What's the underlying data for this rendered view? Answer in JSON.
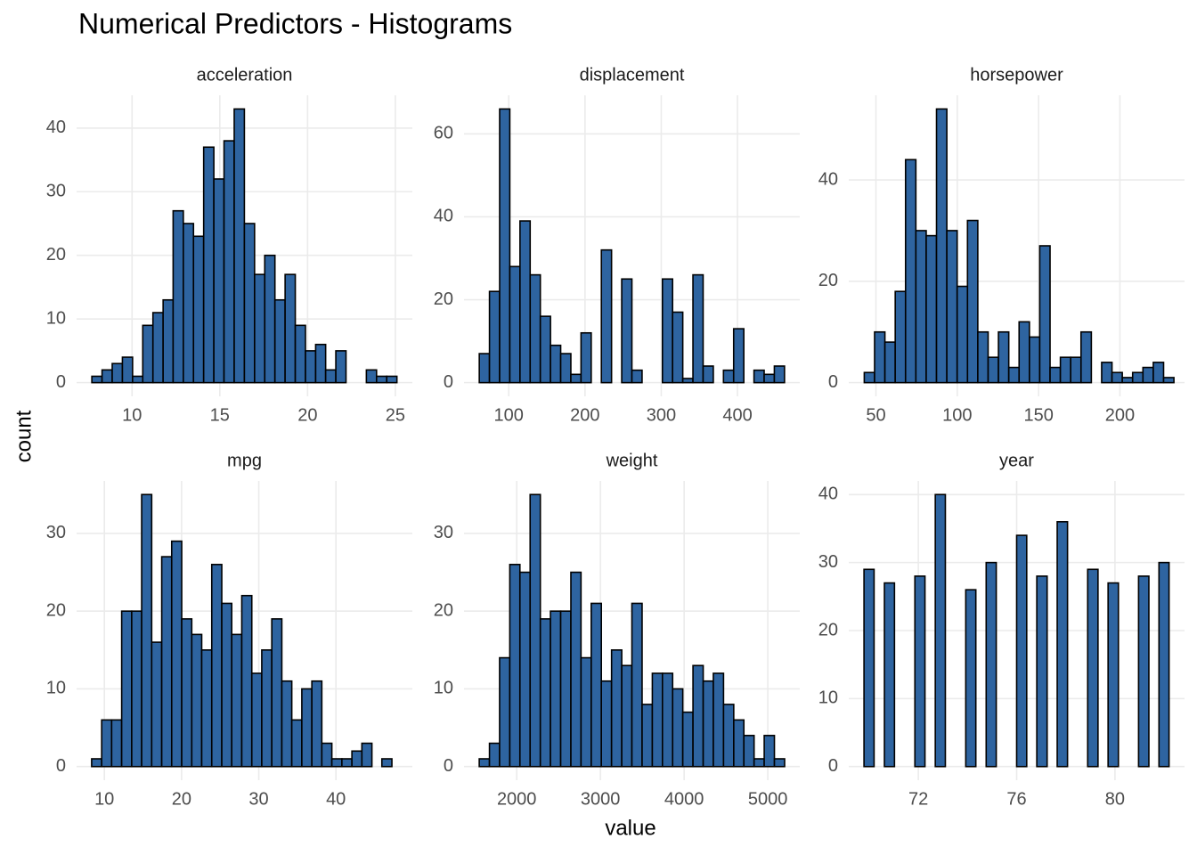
{
  "title": "Numerical Predictors - Histograms",
  "x_label": "value",
  "y_label": "count",
  "chart_data": [
    {
      "type": "histogram",
      "title": "acceleration",
      "color": "#2e64a0",
      "grid": true,
      "bins": [
        7.71,
        8.29,
        8.87,
        9.45,
        10.03,
        10.61,
        11.19,
        11.77,
        12.34,
        12.92,
        13.5,
        14.08,
        14.66,
        15.24,
        15.82,
        16.4,
        16.98,
        17.56,
        18.14,
        18.72,
        19.3,
        19.88,
        20.46,
        21.03,
        21.61,
        22.19,
        22.77,
        23.35,
        23.93,
        24.51,
        25.09
      ],
      "values": [
        1,
        2,
        3,
        4,
        1,
        9,
        11,
        13,
        27,
        25,
        23,
        37,
        32,
        38,
        43,
        25,
        17,
        20,
        13,
        17,
        9,
        5,
        6,
        2,
        5,
        0,
        0,
        2,
        1,
        1
      ],
      "xlim": [
        6.84,
        25.97
      ],
      "xticks": [
        10,
        15,
        20,
        25
      ],
      "ylim": [
        -2.15,
        45.15
      ],
      "yticks": [
        0,
        10,
        20,
        30,
        40
      ]
    },
    {
      "type": "histogram",
      "title": "displacement",
      "color": "#2e64a0",
      "grid": true,
      "bins": [
        61.33,
        74.68,
        88.02,
        101.37,
        114.71,
        128.06,
        141.4,
        154.75,
        168.09,
        181.44,
        194.78,
        208.13,
        221.47,
        234.82,
        248.16,
        261.51,
        274.85,
        288.2,
        301.54,
        314.89,
        328.23,
        341.58,
        354.92,
        368.27,
        381.61,
        394.96,
        408.3,
        421.65,
        434.99,
        448.34,
        461.68
      ],
      "values": [
        7,
        22,
        66,
        28,
        39,
        26,
        16,
        9,
        7,
        2,
        12,
        0,
        32,
        0,
        25,
        3,
        0,
        0,
        25,
        17,
        1,
        26,
        4,
        0,
        3,
        13,
        0,
        3,
        2,
        4
      ],
      "xlim": [
        41.3,
        481.7
      ],
      "xticks": [
        100,
        200,
        300,
        400
      ],
      "ylim": [
        -3.3,
        69.3
      ],
      "yticks": [
        0,
        20,
        40,
        60
      ]
    },
    {
      "type": "histogram",
      "title": "horsepower",
      "color": "#2e64a0",
      "grid": true,
      "bins": [
        42.83,
        49.17,
        55.52,
        61.86,
        68.21,
        74.55,
        80.9,
        87.24,
        93.59,
        99.93,
        106.28,
        112.62,
        118.97,
        125.31,
        131.66,
        138.0,
        144.35,
        150.69,
        157.04,
        163.38,
        169.73,
        176.07,
        182.42,
        188.76,
        195.11,
        201.45,
        207.8,
        214.14,
        220.49,
        226.83,
        233.18
      ],
      "values": [
        2,
        10,
        8,
        18,
        44,
        30,
        29,
        54,
        30,
        19,
        32,
        10,
        5,
        10,
        3,
        12,
        9,
        27,
        3,
        5,
        5,
        10,
        0,
        4,
        2,
        1,
        2,
        3,
        4,
        1
      ],
      "xlim": [
        33.3,
        239.7
      ],
      "xticks": [
        50,
        100,
        150,
        200
      ],
      "ylim": [
        -2.7,
        56.7
      ],
      "yticks": [
        0,
        20,
        40
      ]
    },
    {
      "type": "histogram",
      "title": "mpg",
      "color": "#2e64a0",
      "grid": true,
      "bins": [
        8.35,
        9.65,
        10.94,
        12.24,
        13.54,
        14.83,
        16.13,
        17.43,
        18.72,
        20.02,
        21.32,
        22.61,
        23.91,
        25.21,
        26.5,
        27.8,
        29.1,
        30.39,
        31.69,
        32.99,
        34.28,
        35.58,
        36.88,
        38.17,
        39.47,
        40.77,
        42.07,
        43.36,
        44.66,
        45.95,
        47.25
      ],
      "values": [
        1,
        6,
        6,
        20,
        20,
        35,
        16,
        27,
        29,
        19,
        17,
        15,
        26,
        21,
        17,
        22,
        12,
        15,
        19,
        11,
        6,
        10,
        11,
        3,
        1,
        1,
        2,
        3,
        0,
        1
      ],
      "xlim": [
        6.4,
        49.9
      ],
      "xticks": [
        10,
        20,
        30,
        40
      ],
      "ylim": [
        -1.75,
        36.75
      ],
      "yticks": [
        0,
        10,
        20,
        30
      ]
    },
    {
      "type": "histogram",
      "title": "weight",
      "color": "#2e64a0",
      "grid": true,
      "bins": [
        1552,
        1674,
        1795,
        1917,
        2038,
        2160,
        2282,
        2403,
        2525,
        2647,
        2768,
        2890,
        3011,
        3133,
        3255,
        3376,
        3498,
        3620,
        3741,
        3863,
        3984,
        4106,
        4228,
        4349,
        4471,
        4593,
        4714,
        4836,
        4957,
        5079,
        5201
      ],
      "values": [
        1,
        3,
        14,
        26,
        25,
        35,
        19,
        20,
        20,
        25,
        14,
        21,
        11,
        15,
        13,
        21,
        8,
        12,
        12,
        10,
        7,
        13,
        11,
        12,
        8,
        6,
        4,
        1,
        4,
        1
      ],
      "xlim": [
        1370,
        5382
      ],
      "xticks": [
        2000,
        3000,
        4000,
        5000
      ],
      "ylim": [
        -1.75,
        36.75
      ],
      "yticks": [
        0,
        10,
        20,
        30
      ]
    },
    {
      "type": "histogram",
      "title": "year",
      "color": "#2e64a0",
      "grid": true,
      "bins": [
        69.79,
        70.2,
        70.62,
        71.03,
        71.45,
        71.86,
        72.27,
        72.69,
        73.1,
        73.51,
        73.93,
        74.34,
        74.76,
        75.17,
        75.58,
        76.0,
        76.41,
        76.82,
        77.24,
        77.65,
        78.07,
        78.48,
        78.89,
        79.31,
        79.72,
        80.14,
        80.55,
        80.96,
        81.38,
        81.79,
        82.2
      ],
      "values": [
        29,
        0,
        27,
        0,
        0,
        28,
        0,
        40,
        0,
        0,
        26,
        0,
        30,
        0,
        0,
        34,
        0,
        28,
        0,
        36,
        0,
        0,
        29,
        0,
        27,
        0,
        0,
        28,
        0,
        30
      ],
      "xlim": [
        69.17,
        82.83
      ],
      "xticks": [
        72,
        76,
        80
      ],
      "ylim": [
        -2,
        42
      ],
      "yticks": [
        0,
        10,
        20,
        30,
        40
      ]
    }
  ]
}
